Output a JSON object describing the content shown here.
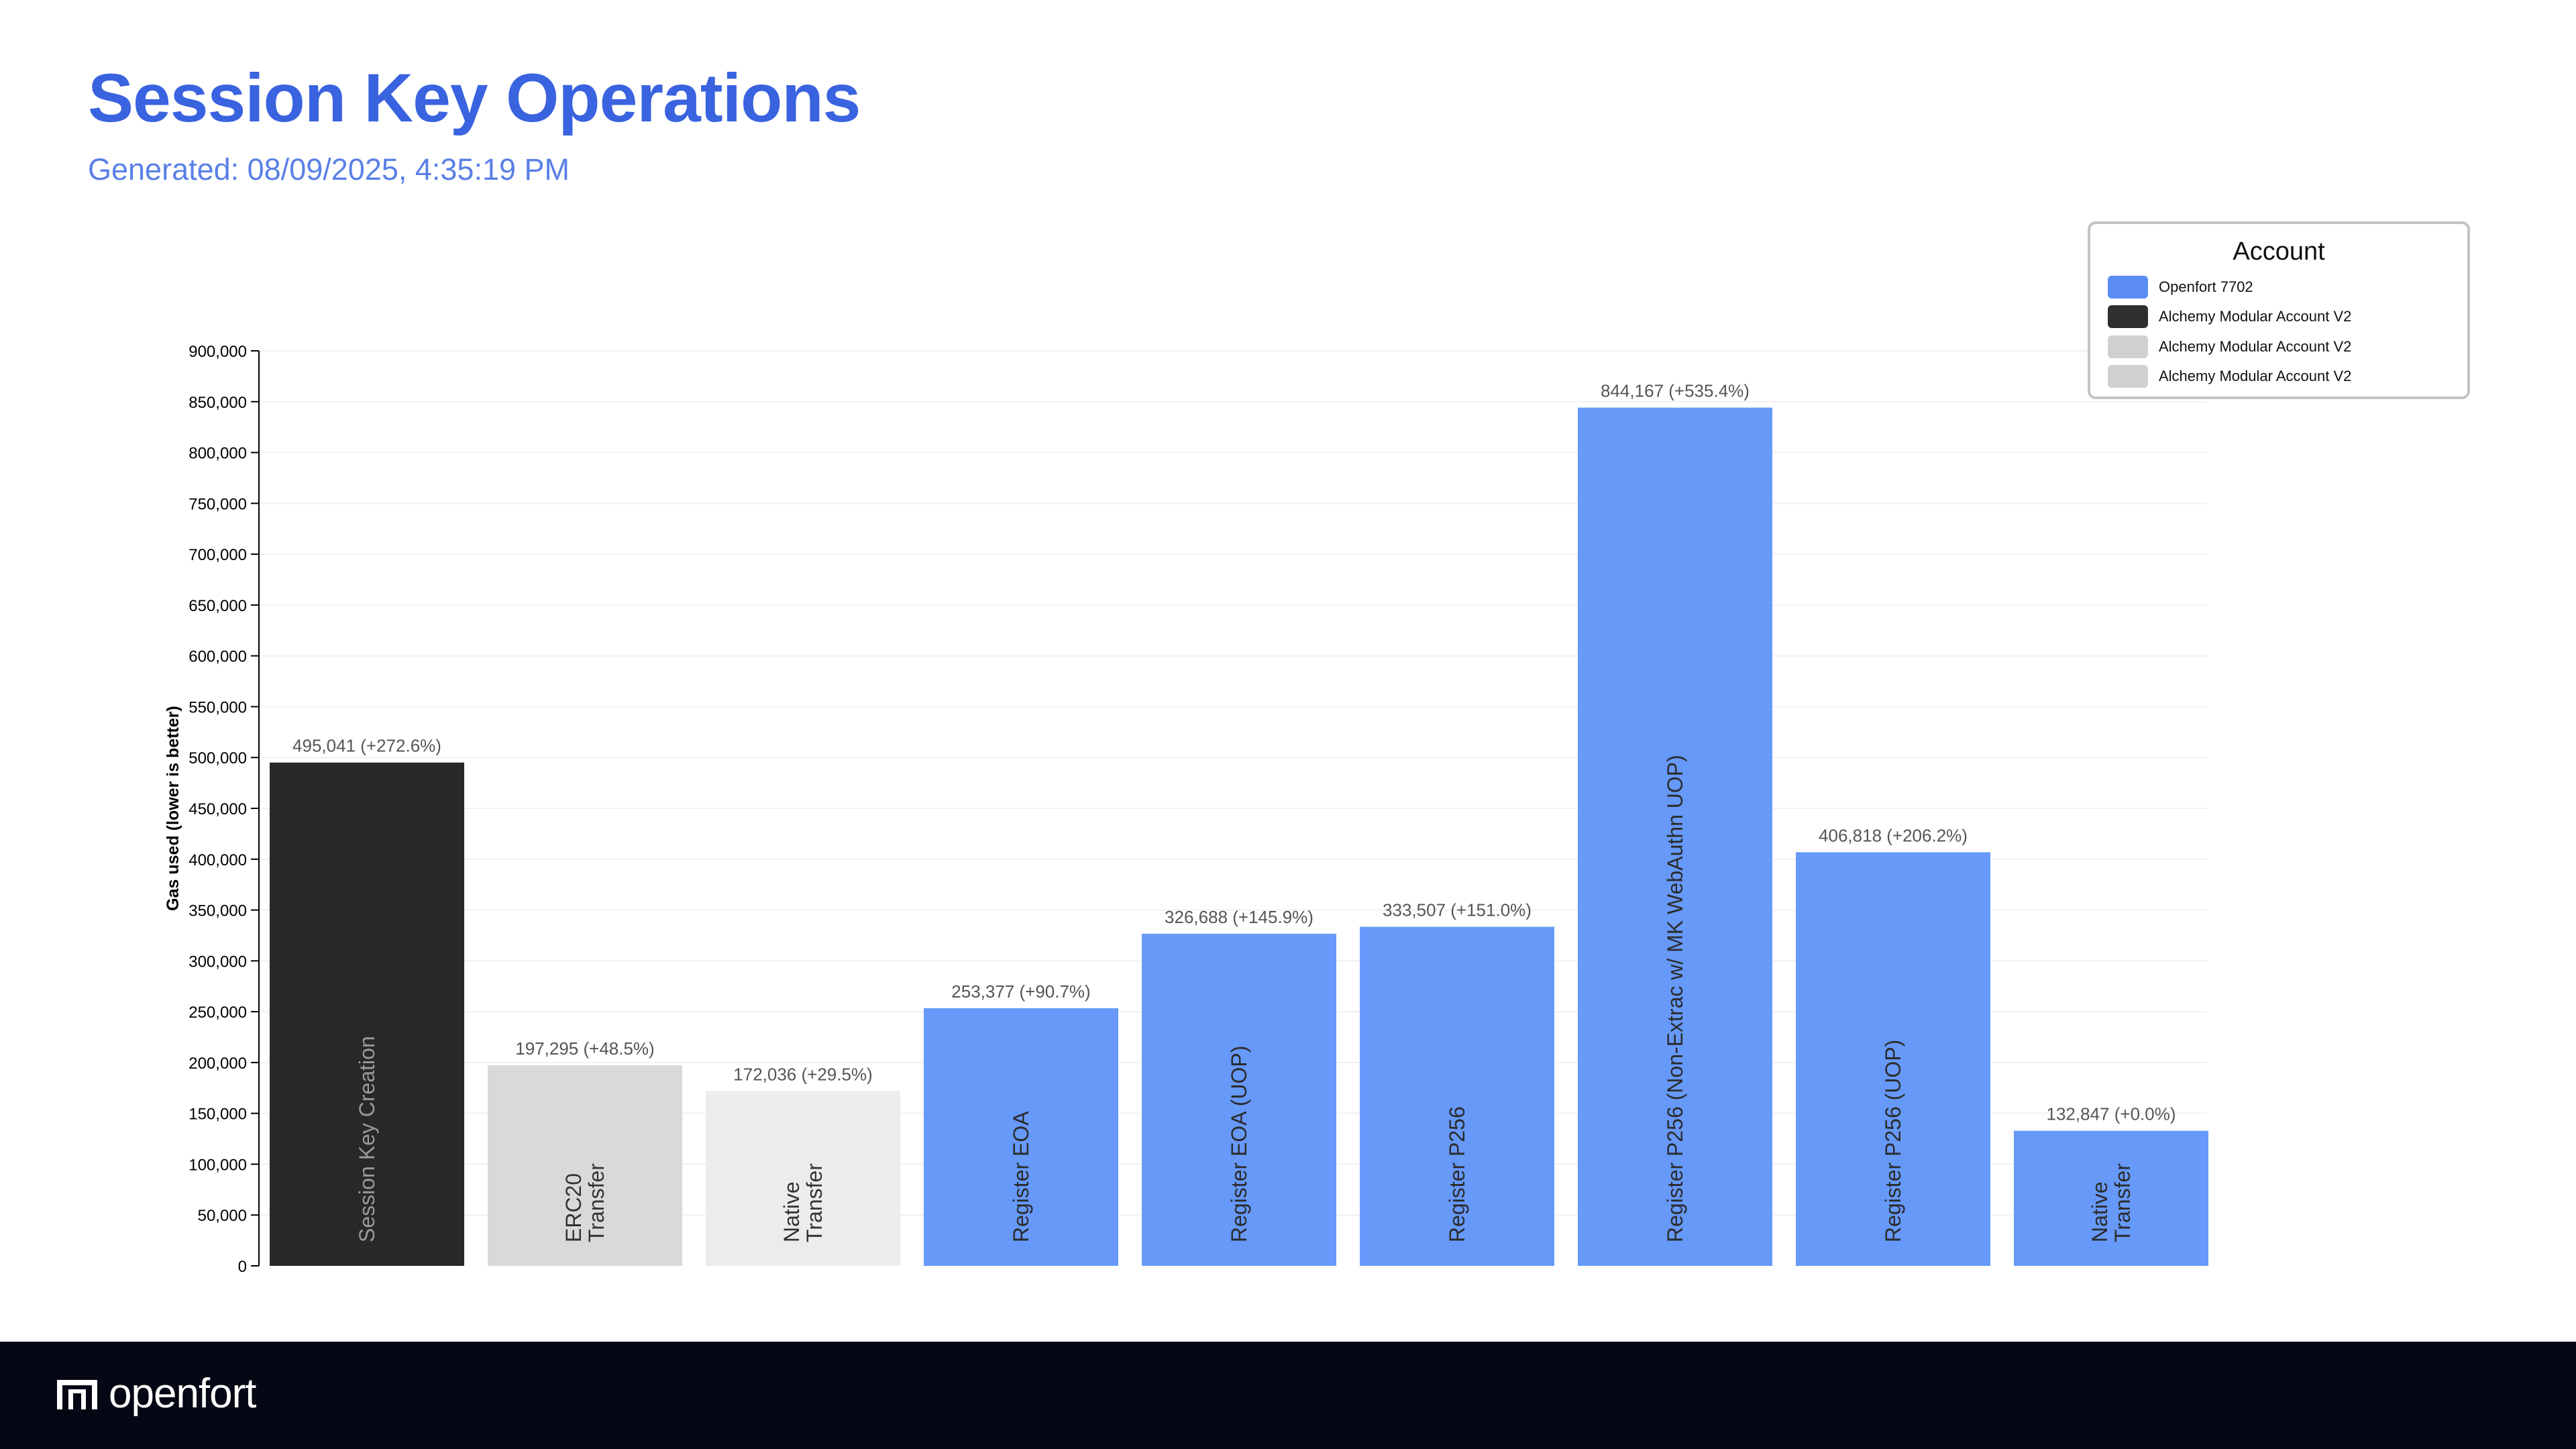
{
  "header": {
    "title": "Session Key Operations",
    "subtitle": "Generated: 08/09/2025, 4:35:19 PM"
  },
  "legend": {
    "title": "Account",
    "items": [
      {
        "label": "Openfort 7702",
        "color": "#5b8cf5"
      },
      {
        "label": "Alchemy Modular Account V2",
        "color": "#2f2f2f"
      },
      {
        "label": "Alchemy Modular Account V2",
        "color": "#d0d0d0"
      },
      {
        "label": "Alchemy Modular Account V2",
        "color": "#d0d0d0"
      }
    ]
  },
  "footer": {
    "brand": "openfort"
  },
  "chart_data": {
    "type": "bar",
    "ylabel": "Gas used (lower is better)",
    "ylim": [
      0,
      900000
    ],
    "yticks": [
      "0",
      "50,000",
      "100,000",
      "150,000",
      "200,000",
      "250,000",
      "300,000",
      "350,000",
      "400,000",
      "450,000",
      "500,000",
      "550,000",
      "600,000",
      "650,000",
      "700,000",
      "750,000",
      "800,000",
      "850,000",
      "900,000"
    ],
    "grid": true,
    "legend_position": "top-right",
    "bars": [
      {
        "category": [
          "Session Key Creation"
        ],
        "value": 495041,
        "label": "495,041 (+272.6%)",
        "color": "#282828",
        "text_color": "#9a9a9a"
      },
      {
        "category": [
          "ERC20",
          "Transfer"
        ],
        "value": 197295,
        "label": "197,295 (+48.5%)",
        "color": "#d9d9d9",
        "text_color": "#333333"
      },
      {
        "category": [
          "Native",
          "Transfer"
        ],
        "value": 172036,
        "label": "172,036 (+29.5%)",
        "color": "#ececec",
        "text_color": "#333333"
      },
      {
        "category": [
          "Register EOA"
        ],
        "value": 253377,
        "label": "253,377 (+90.7%)",
        "color": "#6699f8",
        "text_color": "#2b2b2b"
      },
      {
        "category": [
          "Register EOA (UOP)"
        ],
        "value": 326688,
        "label": "326,688 (+145.9%)",
        "color": "#6699f8",
        "text_color": "#2b2b2b"
      },
      {
        "category": [
          "Register P256"
        ],
        "value": 333507,
        "label": "333,507 (+151.0%)",
        "color": "#6699f8",
        "text_color": "#2b2b2b"
      },
      {
        "category": [
          "Register P256 (Non-Extrac w/ MK WebAuthn UOP)"
        ],
        "value": 844167,
        "label": "844,167 (+535.4%)",
        "color": "#6699f8",
        "text_color": "#2b2b2b"
      },
      {
        "category": [
          "Register P256 (UOP)"
        ],
        "value": 406818,
        "label": "406,818 (+206.2%)",
        "color": "#6699f8",
        "text_color": "#2b2b2b"
      },
      {
        "category": [
          "Native",
          "Transfer"
        ],
        "value": 132847,
        "label": "132,847 (+0.0%)",
        "color": "#6699f8",
        "text_color": "#2b2b2b"
      }
    ]
  }
}
